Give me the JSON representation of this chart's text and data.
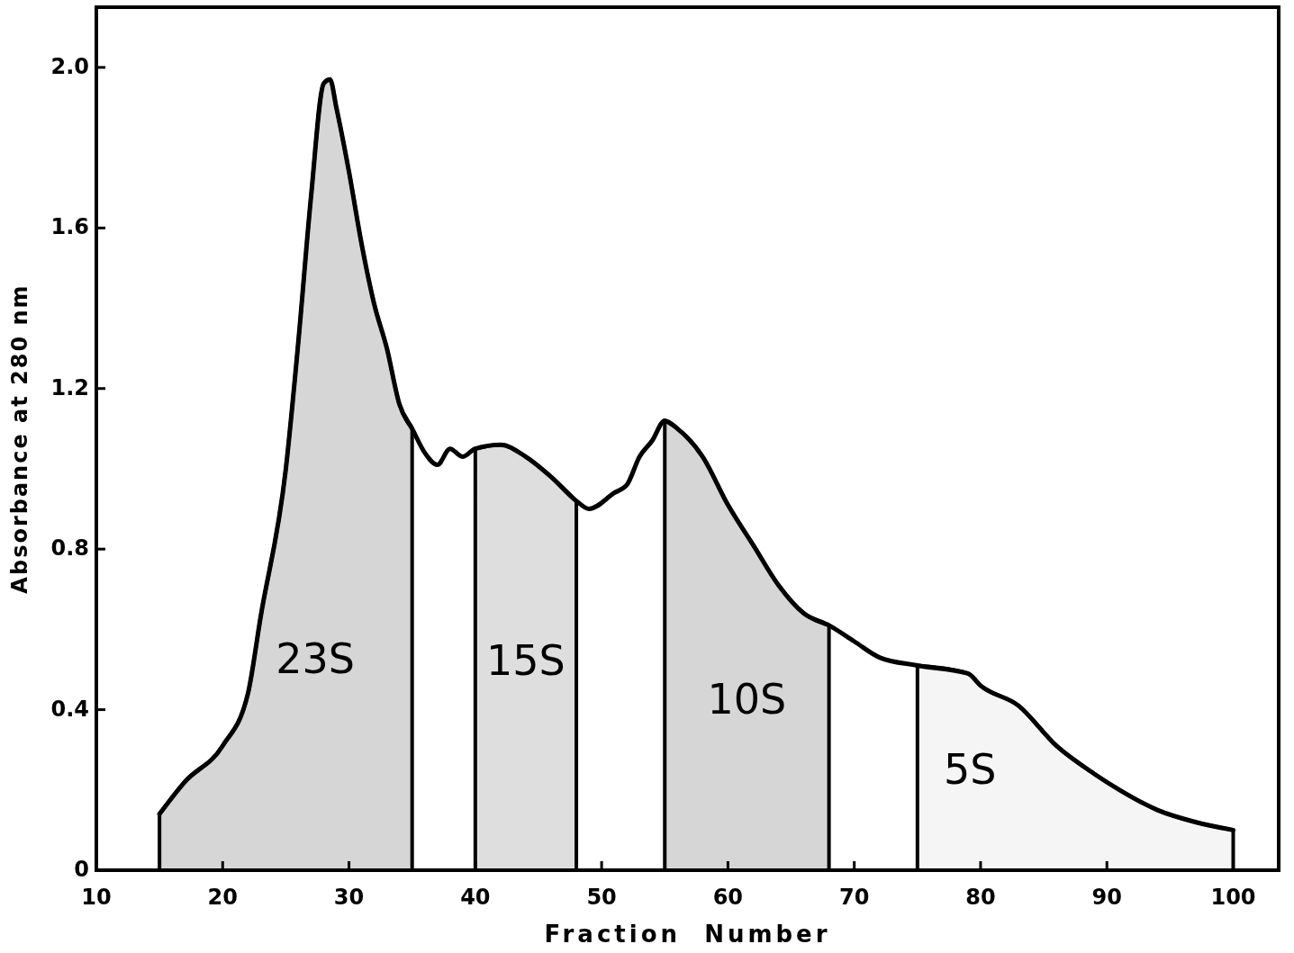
{
  "chart_data": {
    "type": "line",
    "xlabel": "Fraction  Number",
    "ylabel": "Absorbance at 280 nm",
    "x": [
      15,
      17,
      20,
      22,
      23,
      25,
      26,
      27,
      28,
      28.5,
      29,
      30,
      31,
      32,
      33,
      34,
      35,
      36,
      37,
      38,
      39,
      40,
      42,
      44,
      46,
      48,
      49,
      51,
      52,
      53,
      54,
      55,
      56,
      58,
      60,
      62,
      64,
      66,
      68,
      70,
      72,
      75,
      79,
      80,
      83,
      86,
      89,
      91,
      94,
      97,
      100
    ],
    "series": [
      {
        "color": "#000000",
        "values": [
          0.14,
          0.22,
          0.31,
          0.44,
          0.63,
          1.0,
          1.32,
          1.68,
          1.96,
          1.97,
          1.9,
          1.74,
          1.56,
          1.41,
          1.3,
          1.16,
          1.1,
          1.04,
          1.01,
          1.05,
          1.03,
          1.05,
          1.06,
          1.03,
          0.98,
          0.92,
          0.9,
          0.94,
          0.96,
          1.03,
          1.07,
          1.12,
          1.1,
          1.03,
          0.91,
          0.81,
          0.71,
          0.64,
          0.61,
          0.57,
          0.53,
          0.51,
          0.49,
          0.46,
          0.41,
          0.31,
          0.24,
          0.2,
          0.15,
          0.12,
          0.1
        ]
      },
      {
        "type": "area",
        "name": "23S",
        "color": "#d6d6d6",
        "x": [
          15,
          17,
          20,
          22,
          23,
          25,
          26,
          27,
          28,
          28.5,
          29,
          30,
          31,
          32,
          33,
          34,
          35
        ],
        "values": [
          0.14,
          0.22,
          0.31,
          0.44,
          0.63,
          1.0,
          1.32,
          1.68,
          1.96,
          1.97,
          1.9,
          1.74,
          1.56,
          1.41,
          1.3,
          1.16,
          1.1
        ]
      },
      {
        "type": "area",
        "name": "15S",
        "color": "#dedede",
        "x": [
          40,
          42,
          44,
          46,
          48
        ],
        "values": [
          1.05,
          1.06,
          1.03,
          0.98,
          0.92
        ]
      },
      {
        "type": "area",
        "name": "10S",
        "color": "#d6d6d6",
        "x": [
          55,
          56,
          58,
          60,
          62,
          64,
          66,
          68
        ],
        "values": [
          1.12,
          1.1,
          1.03,
          0.91,
          0.81,
          0.71,
          0.64,
          0.61
        ]
      },
      {
        "type": "area",
        "name": "5S",
        "color": "#f5f5f5",
        "x": [
          75,
          79,
          80,
          83,
          86,
          89,
          91,
          94,
          97,
          100
        ],
        "values": [
          0.51,
          0.49,
          0.46,
          0.41,
          0.31,
          0.24,
          0.2,
          0.15,
          0.12,
          0.1
        ]
      }
    ],
    "xlim": [
      10,
      103.6
    ],
    "ylim": [
      0,
      2.15
    ],
    "xticks": [
      10,
      20,
      30,
      40,
      50,
      60,
      70,
      80,
      90,
      100
    ],
    "yticks": [
      {
        "value": 0,
        "label": "0"
      },
      0.4,
      0.8,
      1.2,
      1.6,
      {
        "value": 2,
        "label": "2.0"
      }
    ],
    "grid": false,
    "marker": "none",
    "line_style": "solid"
  }
}
